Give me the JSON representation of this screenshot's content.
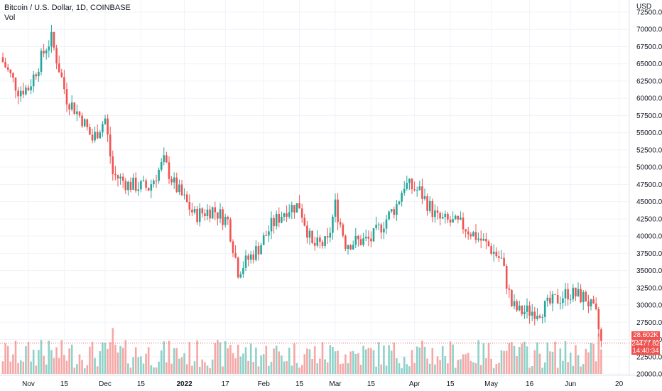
{
  "legend": {
    "title": "Bitcoin / U.S. Dollar, 1D, COINBASE",
    "volume": "Vol"
  },
  "price_axis": {
    "currency": "USD",
    "ticks": [
      "72500.00",
      "70000.00",
      "67500.00",
      "65000.00",
      "62500.00",
      "60000.00",
      "57500.00",
      "55000.00",
      "52500.00",
      "50000.00",
      "47500.00",
      "45000.00",
      "42500.00",
      "40000.00",
      "37500.00",
      "35000.00",
      "32500.00",
      "30000.00",
      "27500.00",
      "25000.00",
      "22500.00",
      "20000.00"
    ]
  },
  "time_axis": {
    "ticks": [
      "Nov",
      "15",
      "Dec",
      "15",
      "2022",
      "17",
      "Feb",
      "15",
      "Mar",
      "15",
      "Apr",
      "15",
      "May",
      "16",
      "Jun",
      "20"
    ]
  },
  "tags": {
    "volume_value": "28.602K",
    "last_price": "24477.82",
    "countdown": "14:40:34"
  },
  "colors": {
    "up": "#26a69a",
    "down": "#ef5350",
    "up_vol": "#8fd1c8",
    "down_vol": "#f5a7a5",
    "grid": "#f0f3fa"
  },
  "chart_data": {
    "type": "candlestick",
    "symbol": "BTCUSD",
    "interval": "1D",
    "ylim": [
      20000,
      72500
    ],
    "last_price": 24477.82,
    "close_path": [
      {
        "date": "2021-10-22",
        "close": 65300
      },
      {
        "date": "2021-10-28",
        "close": 61200
      },
      {
        "date": "2021-11-01",
        "close": 61500
      },
      {
        "date": "2021-11-08",
        "close": 67500
      },
      {
        "date": "2021-11-10",
        "close": 68600
      },
      {
        "date": "2021-11-16",
        "close": 60000
      },
      {
        "date": "2021-11-22",
        "close": 57000
      },
      {
        "date": "2021-11-26",
        "close": 54000
      },
      {
        "date": "2021-12-01",
        "close": 57000
      },
      {
        "date": "2021-12-04",
        "close": 49000
      },
      {
        "date": "2021-12-10",
        "close": 47500
      },
      {
        "date": "2021-12-18",
        "close": 47000
      },
      {
        "date": "2021-12-24",
        "close": 50800
      },
      {
        "date": "2021-12-28",
        "close": 47500
      },
      {
        "date": "2022-01-05",
        "close": 43000
      },
      {
        "date": "2022-01-12",
        "close": 43900
      },
      {
        "date": "2022-01-18",
        "close": 42200
      },
      {
        "date": "2022-01-22",
        "close": 35000
      },
      {
        "date": "2022-01-30",
        "close": 38300
      },
      {
        "date": "2022-02-04",
        "close": 41500
      },
      {
        "date": "2022-02-10",
        "close": 44000
      },
      {
        "date": "2022-02-15",
        "close": 44500
      },
      {
        "date": "2022-02-20",
        "close": 38500
      },
      {
        "date": "2022-02-26",
        "close": 39000
      },
      {
        "date": "2022-03-01",
        "close": 44500
      },
      {
        "date": "2022-03-05",
        "close": 39000
      },
      {
        "date": "2022-03-15",
        "close": 39500
      },
      {
        "date": "2022-03-25",
        "close": 44500
      },
      {
        "date": "2022-03-28",
        "close": 47500
      },
      {
        "date": "2022-04-03",
        "close": 46500
      },
      {
        "date": "2022-04-10",
        "close": 42500
      },
      {
        "date": "2022-04-20",
        "close": 41500
      },
      {
        "date": "2022-04-30",
        "close": 38500
      },
      {
        "date": "2022-05-05",
        "close": 36500
      },
      {
        "date": "2022-05-09",
        "close": 30000
      },
      {
        "date": "2022-05-12",
        "close": 29000
      },
      {
        "date": "2022-05-20",
        "close": 29200
      },
      {
        "date": "2022-05-31",
        "close": 31800
      },
      {
        "date": "2022-06-07",
        "close": 31000
      },
      {
        "date": "2022-06-11",
        "close": 28400
      },
      {
        "date": "2022-06-13",
        "close": 24477.82
      }
    ],
    "volume_last": "28.602K"
  }
}
